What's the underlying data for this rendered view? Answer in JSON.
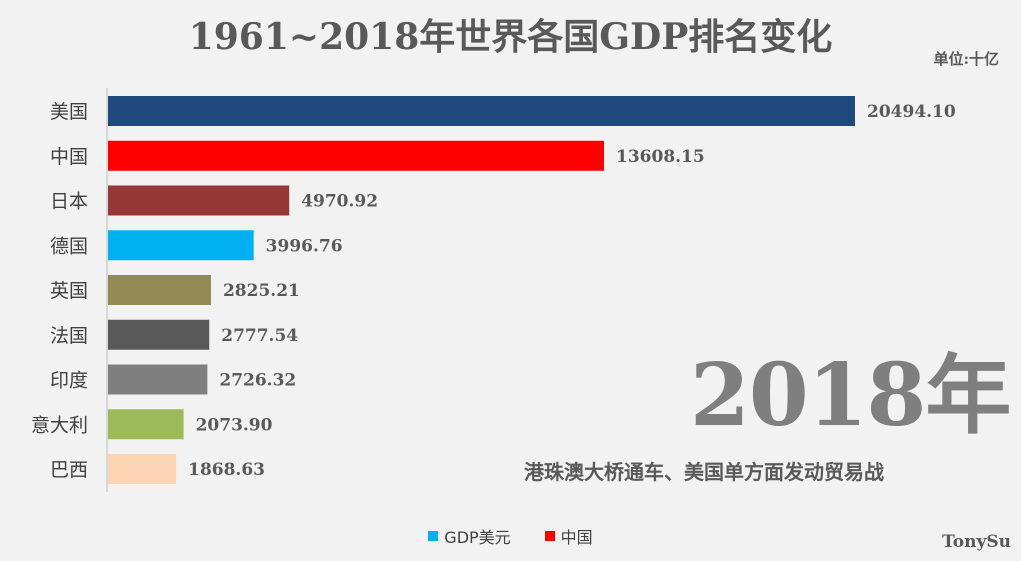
{
  "title": "1961~2018年世界各国GDP排名变化",
  "unit": "单位:十亿",
  "year": "2018年",
  "event": "港珠澳大桥通车、美国单方面发动贸易战",
  "credit": "TonySu",
  "legend": [
    {
      "label": "GDP美元",
      "color": "#00b0f0"
    },
    {
      "label": "中国",
      "color": "#ff0000"
    }
  ],
  "chart_data": {
    "type": "bar",
    "orientation": "horizontal",
    "categories": [
      "美国",
      "中国",
      "日本",
      "德国",
      "英国",
      "法国",
      "印度",
      "意大利",
      "巴西"
    ],
    "values": [
      20494.1,
      13608.15,
      4970.92,
      3996.76,
      2825.21,
      2777.54,
      2726.32,
      2073.9,
      1868.63
    ],
    "value_labels": [
      "20494.10",
      "13608.15",
      "4970.92",
      "3996.76",
      "2825.21",
      "2777.54",
      "2726.32",
      "2073.90",
      "1868.63"
    ],
    "colors": [
      "#1f497d",
      "#ff0000",
      "#953735",
      "#00b0f0",
      "#948a54",
      "#595959",
      "#7f7f7f",
      "#9bbb59",
      "#fcd5b5"
    ],
    "xlim": [
      0,
      20494.1
    ],
    "grid": false
  }
}
